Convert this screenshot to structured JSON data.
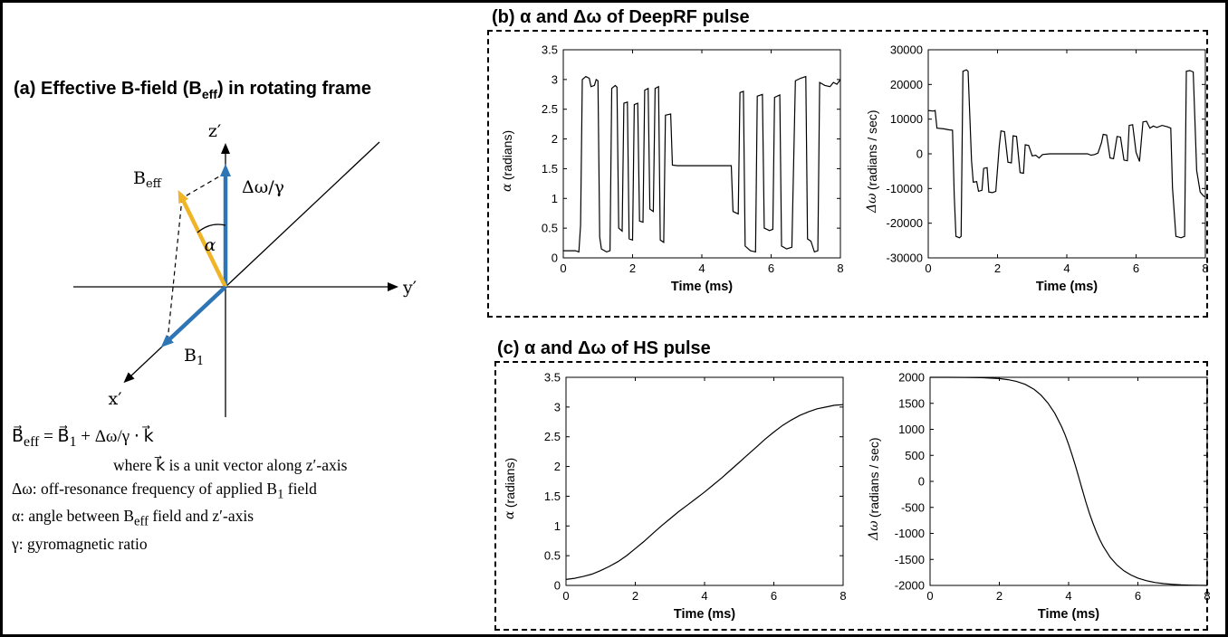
{
  "colors": {
    "axis": "#000000",
    "vector_blue": "#2e75b6",
    "vector_gold": "#f0b428"
  },
  "panel_a": {
    "title": {
      "pre": "(a) Effective B-field (B",
      "sub": "eff",
      "post": ") in rotating frame"
    },
    "diagram": {
      "z_label": "z′",
      "y_label": "y′",
      "x_label": "x′",
      "dw_label": "Δω/γ",
      "alpha_label": "α",
      "beff_label": {
        "main": "B",
        "sub": "eff"
      },
      "b1_label": {
        "main": "B",
        "sub": "1"
      }
    },
    "equations": {
      "line1": {
        "p1": "B⃗",
        "s1": "eff",
        "p2": " = B⃗",
        "s2": "1",
        "p3": " + Δω/γ ⋅ k⃗"
      },
      "line2": "where k⃗ is a unit vector along z′-axis",
      "line3": {
        "p1": "Δω: off-resonance frequency of applied B",
        "s1": "1",
        "p2": " field"
      },
      "line4": {
        "p1": "α: angle between B",
        "s1": "eff",
        "p2": " field and z′-axis"
      },
      "line5": "γ: gyromagnetic ratio"
    }
  },
  "panel_b": {
    "title": "(b) α and Δω of DeepRF pulse"
  },
  "panel_c": {
    "title": "(c) α and Δω of HS pulse"
  },
  "chart_data": [
    {
      "id": "deeprf-alpha",
      "type": "line",
      "xlabel": "Time (ms)",
      "ylabel": "α (radians)",
      "ylabel_italic": "α",
      "ylabel_rest": " (radians)",
      "xlim": [
        0,
        8
      ],
      "ylim": [
        0,
        3.5
      ],
      "xticks": [
        0,
        2,
        4,
        6,
        8
      ],
      "yticks": [
        0,
        0.5,
        1,
        1.5,
        2,
        2.5,
        3,
        3.5
      ],
      "grid": false,
      "legend": "none",
      "points": [
        [
          0,
          0.12
        ],
        [
          0.35,
          0.12
        ],
        [
          0.45,
          0.1
        ],
        [
          0.5,
          0.55
        ],
        [
          0.55,
          3.0
        ],
        [
          0.65,
          3.05
        ],
        [
          0.75,
          3.02
        ],
        [
          0.8,
          2.88
        ],
        [
          0.9,
          2.9
        ],
        [
          0.95,
          3.0
        ],
        [
          1.0,
          2.98
        ],
        [
          1.05,
          0.35
        ],
        [
          1.1,
          0.15
        ],
        [
          1.25,
          0.1
        ],
        [
          1.35,
          0.12
        ],
        [
          1.4,
          2.85
        ],
        [
          1.5,
          2.9
        ],
        [
          1.55,
          2.87
        ],
        [
          1.6,
          0.5
        ],
        [
          1.7,
          0.45
        ],
        [
          1.75,
          2.6
        ],
        [
          1.85,
          2.62
        ],
        [
          1.9,
          0.32
        ],
        [
          2.0,
          0.3
        ],
        [
          2.05,
          2.58
        ],
        [
          2.15,
          2.6
        ],
        [
          2.2,
          0.62
        ],
        [
          2.3,
          0.6
        ],
        [
          2.35,
          2.82
        ],
        [
          2.45,
          2.85
        ],
        [
          2.5,
          0.82
        ],
        [
          2.6,
          0.78
        ],
        [
          2.65,
          2.85
        ],
        [
          2.75,
          2.88
        ],
        [
          2.8,
          0.3
        ],
        [
          2.9,
          0.26
        ],
        [
          2.95,
          2.4
        ],
        [
          3.1,
          2.42
        ],
        [
          3.15,
          1.56
        ],
        [
          3.3,
          1.55
        ],
        [
          4.85,
          1.55
        ],
        [
          4.9,
          0.78
        ],
        [
          5.05,
          0.74
        ],
        [
          5.1,
          2.78
        ],
        [
          5.2,
          2.8
        ],
        [
          5.25,
          0.2
        ],
        [
          5.4,
          0.12
        ],
        [
          5.55,
          0.1
        ],
        [
          5.6,
          2.72
        ],
        [
          5.75,
          2.75
        ],
        [
          5.8,
          0.5
        ],
        [
          5.95,
          0.46
        ],
        [
          6.05,
          0.48
        ],
        [
          6.1,
          2.7
        ],
        [
          6.25,
          2.74
        ],
        [
          6.3,
          0.2
        ],
        [
          6.45,
          0.15
        ],
        [
          6.6,
          0.18
        ],
        [
          6.7,
          2.98
        ],
        [
          6.85,
          3.02
        ],
        [
          7.0,
          3.05
        ],
        [
          7.05,
          0.32
        ],
        [
          7.15,
          0.28
        ],
        [
          7.25,
          0.1
        ],
        [
          7.35,
          0.12
        ],
        [
          7.4,
          2.95
        ],
        [
          7.55,
          2.9
        ],
        [
          7.7,
          2.88
        ],
        [
          7.8,
          2.95
        ],
        [
          7.9,
          2.92
        ],
        [
          8,
          3.0
        ]
      ]
    },
    {
      "id": "deeprf-domega",
      "type": "line",
      "xlabel": "Time (ms)",
      "ylabel": "Δω (radians / sec)",
      "ylabel_italic": "Δω",
      "ylabel_rest": " (radians / sec)",
      "xlim": [
        0,
        8
      ],
      "ylim": [
        -30000,
        30000
      ],
      "xticks": [
        0,
        2,
        4,
        6,
        8
      ],
      "yticks": [
        -30000,
        -20000,
        -10000,
        0,
        10000,
        20000,
        30000
      ],
      "grid": false,
      "legend": "none",
      "points": [
        [
          0,
          12500
        ],
        [
          0.15,
          12300
        ],
        [
          0.2,
          12500
        ],
        [
          0.25,
          7400
        ],
        [
          0.45,
          7200
        ],
        [
          0.6,
          6900
        ],
        [
          0.7,
          6800
        ],
        [
          0.75,
          -12000
        ],
        [
          0.8,
          -23800
        ],
        [
          0.9,
          -24200
        ],
        [
          0.95,
          -23800
        ],
        [
          1.0,
          23800
        ],
        [
          1.1,
          24200
        ],
        [
          1.15,
          23800
        ],
        [
          1.25,
          -2000
        ],
        [
          1.3,
          -8200
        ],
        [
          1.4,
          -8000
        ],
        [
          1.45,
          -10800
        ],
        [
          1.55,
          -10500
        ],
        [
          1.6,
          -4200
        ],
        [
          1.7,
          -4000
        ],
        [
          1.75,
          -11000
        ],
        [
          1.85,
          -11200
        ],
        [
          1.95,
          -10800
        ],
        [
          2.05,
          2200
        ],
        [
          2.1,
          6600
        ],
        [
          2.2,
          6400
        ],
        [
          2.3,
          -2400
        ],
        [
          2.4,
          -2600
        ],
        [
          2.45,
          5200
        ],
        [
          2.55,
          5000
        ],
        [
          2.65,
          -5400
        ],
        [
          2.75,
          -5600
        ],
        [
          2.8,
          2600
        ],
        [
          2.9,
          2400
        ],
        [
          3.0,
          -600
        ],
        [
          3.1,
          -400
        ],
        [
          3.2,
          -1200
        ],
        [
          3.3,
          -200
        ],
        [
          3.5,
          0
        ],
        [
          4.6,
          0
        ],
        [
          4.7,
          -400
        ],
        [
          4.8,
          -200
        ],
        [
          4.9,
          200
        ],
        [
          5.0,
          3200
        ],
        [
          5.05,
          5600
        ],
        [
          5.15,
          5400
        ],
        [
          5.25,
          -1200
        ],
        [
          5.35,
          -1400
        ],
        [
          5.45,
          5000
        ],
        [
          5.55,
          4800
        ],
        [
          5.65,
          -1800
        ],
        [
          5.75,
          -2000
        ],
        [
          5.8,
          8200
        ],
        [
          5.9,
          8400
        ],
        [
          6.0,
          400
        ],
        [
          6.1,
          -2200
        ],
        [
          6.2,
          9200
        ],
        [
          6.3,
          9400
        ],
        [
          6.4,
          7400
        ],
        [
          6.5,
          8000
        ],
        [
          6.6,
          7600
        ],
        [
          6.75,
          8200
        ],
        [
          6.9,
          7800
        ],
        [
          7.0,
          7400
        ],
        [
          7.05,
          -9800
        ],
        [
          7.15,
          -23800
        ],
        [
          7.3,
          -24200
        ],
        [
          7.4,
          -23800
        ],
        [
          7.45,
          23800
        ],
        [
          7.55,
          24000
        ],
        [
          7.65,
          23600
        ],
        [
          7.75,
          -4800
        ],
        [
          7.85,
          -11000
        ],
        [
          7.95,
          -12200
        ],
        [
          8,
          -12400
        ]
      ]
    },
    {
      "id": "hs-alpha",
      "type": "line",
      "xlabel": "Time (ms)",
      "ylabel": "α (radians)",
      "ylabel_italic": "α",
      "ylabel_rest": " (radians)",
      "xlim": [
        0,
        8
      ],
      "ylim": [
        0,
        3.5
      ],
      "xticks": [
        0,
        2,
        4,
        6,
        8
      ],
      "yticks": [
        0,
        0.5,
        1,
        1.5,
        2,
        2.5,
        3,
        3.5
      ],
      "grid": false,
      "legend": "none",
      "points": [
        [
          0,
          0.1
        ],
        [
          0.25,
          0.12
        ],
        [
          0.5,
          0.15
        ],
        [
          0.75,
          0.19
        ],
        [
          1.0,
          0.25
        ],
        [
          1.25,
          0.32
        ],
        [
          1.5,
          0.4
        ],
        [
          1.75,
          0.5
        ],
        [
          2.0,
          0.62
        ],
        [
          2.25,
          0.74
        ],
        [
          2.5,
          0.87
        ],
        [
          2.75,
          1.0
        ],
        [
          3.0,
          1.12
        ],
        [
          3.25,
          1.24
        ],
        [
          3.5,
          1.35
        ],
        [
          3.75,
          1.46
        ],
        [
          4.0,
          1.57
        ],
        [
          4.25,
          1.69
        ],
        [
          4.5,
          1.81
        ],
        [
          4.75,
          1.94
        ],
        [
          5.0,
          2.07
        ],
        [
          5.25,
          2.2
        ],
        [
          5.5,
          2.33
        ],
        [
          5.75,
          2.46
        ],
        [
          6.0,
          2.58
        ],
        [
          6.25,
          2.69
        ],
        [
          6.5,
          2.78
        ],
        [
          6.75,
          2.86
        ],
        [
          7.0,
          2.92
        ],
        [
          7.25,
          2.97
        ],
        [
          7.5,
          3.0
        ],
        [
          7.75,
          3.03
        ],
        [
          8,
          3.04
        ]
      ]
    },
    {
      "id": "hs-domega",
      "type": "line",
      "xlabel": "Time (ms)",
      "ylabel": "Δω (radians / sec)",
      "ylabel_italic": "Δω",
      "ylabel_rest": " (radians / sec)",
      "xlim": [
        0,
        8
      ],
      "ylim": [
        -2000,
        2000
      ],
      "xticks": [
        0,
        2,
        4,
        6,
        8
      ],
      "yticks": [
        -2000,
        -1500,
        -1000,
        -500,
        0,
        500,
        1000,
        1500,
        2000
      ],
      "grid": false,
      "legend": "none",
      "points": [
        [
          0,
          2000
        ],
        [
          0.5,
          2000
        ],
        [
          1.0,
          1998
        ],
        [
          1.5,
          1993
        ],
        [
          2.0,
          1975
        ],
        [
          2.25,
          1955
        ],
        [
          2.5,
          1920
        ],
        [
          2.75,
          1865
        ],
        [
          3.0,
          1770
        ],
        [
          3.2,
          1660
        ],
        [
          3.4,
          1510
        ],
        [
          3.6,
          1310
        ],
        [
          3.8,
          1050
        ],
        [
          3.9,
          890
        ],
        [
          4.0,
          710
        ],
        [
          4.1,
          510
        ],
        [
          4.2,
          290
        ],
        [
          4.3,
          60
        ],
        [
          4.4,
          -170
        ],
        [
          4.5,
          -400
        ],
        [
          4.6,
          -610
        ],
        [
          4.7,
          -800
        ],
        [
          4.8,
          -970
        ],
        [
          4.9,
          -1120
        ],
        [
          5.0,
          -1250
        ],
        [
          5.2,
          -1460
        ],
        [
          5.4,
          -1610
        ],
        [
          5.6,
          -1720
        ],
        [
          5.8,
          -1800
        ],
        [
          6.0,
          -1860
        ],
        [
          6.25,
          -1910
        ],
        [
          6.5,
          -1945
        ],
        [
          6.75,
          -1965
        ],
        [
          7.0,
          -1980
        ],
        [
          7.25,
          -1990
        ],
        [
          7.5,
          -1995
        ],
        [
          7.75,
          -1998
        ],
        [
          8,
          -2000
        ]
      ]
    }
  ]
}
